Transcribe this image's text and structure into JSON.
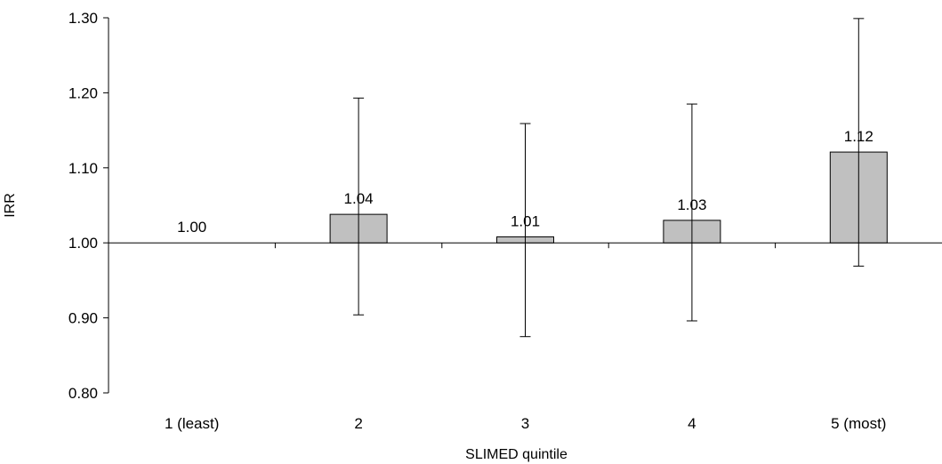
{
  "chart_data": {
    "type": "bar",
    "xlabel": "SLIMED quintile",
    "ylabel": "IRR",
    "baseline": 1.0,
    "ylim": [
      0.8,
      1.3
    ],
    "yticks": [
      0.8,
      0.9,
      1.0,
      1.1,
      1.2,
      1.3
    ],
    "ytick_labels": [
      "0.80",
      "0.90",
      "1.00",
      "1.10",
      "1.20",
      "1.30"
    ],
    "categories": [
      "1 (least)",
      "2",
      "3",
      "4",
      "5 (most)"
    ],
    "values": [
      1.0,
      1.038,
      1.008,
      1.03,
      1.121
    ],
    "data_labels": [
      "1.00",
      "1.04",
      "1.01",
      "1.03",
      "1.12"
    ],
    "ci_lower": [
      null,
      0.904,
      0.875,
      0.896,
      0.969
    ],
    "ci_upper": [
      null,
      1.193,
      1.159,
      1.185,
      1.299
    ],
    "bar_color": "#c0c0c0",
    "grid": false,
    "legend": "none"
  }
}
